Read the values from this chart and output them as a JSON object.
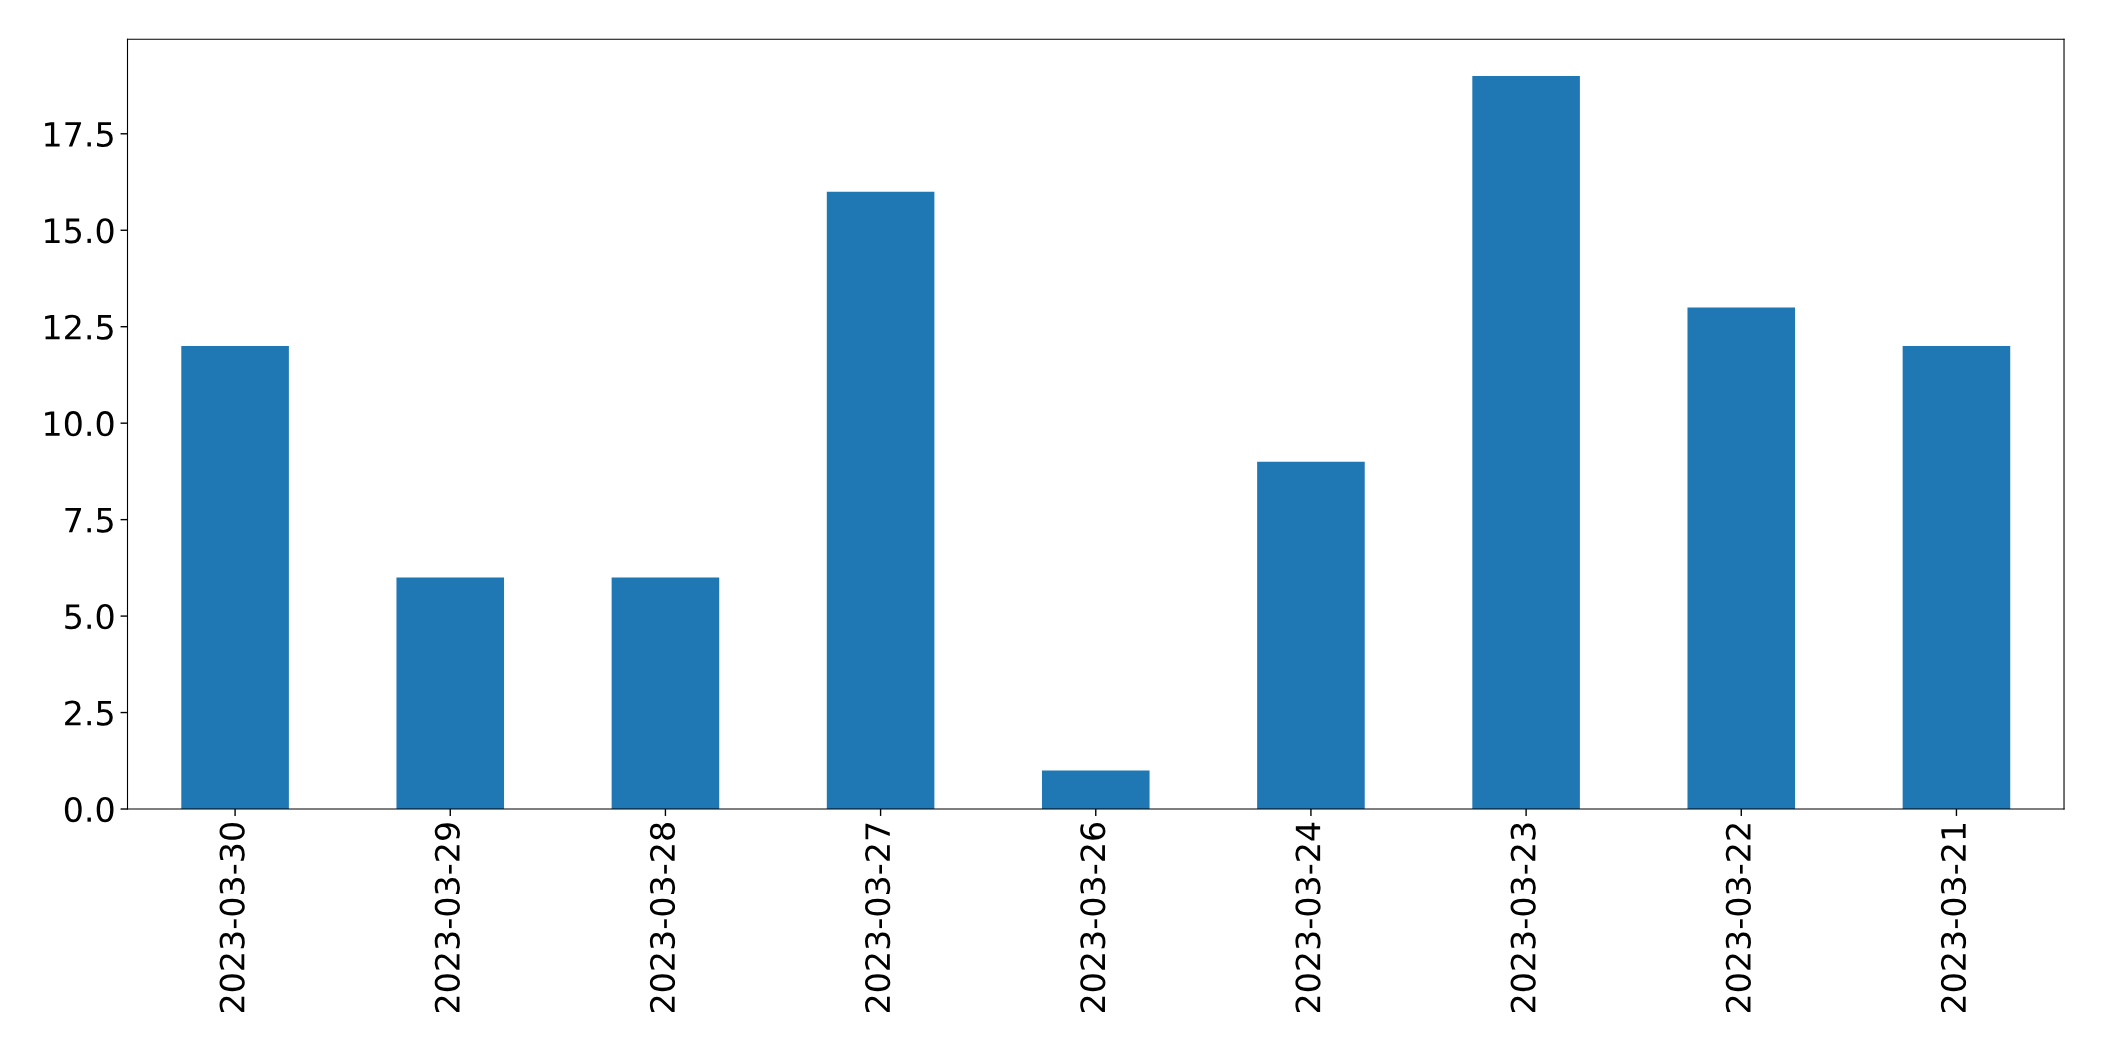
{
  "chart_data": {
    "type": "bar",
    "categories": [
      "2023-03-30",
      "2023-03-29",
      "2023-03-28",
      "2023-03-27",
      "2023-03-26",
      "2023-03-24",
      "2023-03-23",
      "2023-03-22",
      "2023-03-21"
    ],
    "values": [
      12,
      6,
      6,
      16,
      1,
      9,
      19,
      13,
      12
    ],
    "color": "#1f77b4",
    "ylim": [
      0,
      19.95
    ],
    "yticks": [
      {
        "value": 0,
        "label": "0.0"
      },
      2.5,
      {
        "value": 5,
        "label": "5.0"
      },
      7.5,
      {
        "value": 10,
        "label": "10.0"
      },
      12.5,
      {
        "value": 15,
        "label": "15.0"
      },
      17.5
    ],
    "grid": false
  }
}
